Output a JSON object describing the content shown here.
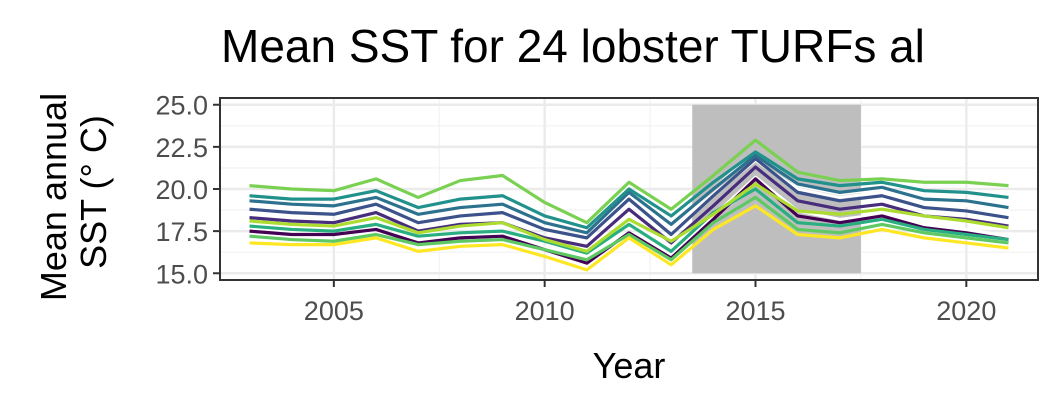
{
  "chart_data": {
    "type": "line",
    "title": "Mean SST for 24 lobster TURFs al",
    "xlabel": "Year",
    "ylabel_lines": [
      "Mean annual",
      "SST (° C)"
    ],
    "xlim": [
      2002.3,
      2021.7
    ],
    "ylim": [
      14.6,
      25.4
    ],
    "x_ticks": [
      2005,
      2010,
      2015,
      2020
    ],
    "y_ticks": [
      "15.0",
      "17.5",
      "20.0",
      "22.5",
      "25.0"
    ],
    "grid": true,
    "panel_background": "#ffffff",
    "shaded_region": {
      "x": [
        2013.5,
        2017.5
      ],
      "color": "#bebebe"
    },
    "x": [
      2003,
      2004,
      2005,
      2006,
      2007,
      2008,
      2009,
      2010,
      2011,
      2012,
      2013,
      2014,
      2015,
      2016,
      2017,
      2018,
      2019,
      2020,
      2021
    ],
    "series": [
      {
        "color": "#440154",
        "values": [
          17.5,
          17.3,
          17.3,
          17.6,
          16.8,
          17.1,
          17.2,
          16.4,
          15.6,
          17.4,
          15.9,
          18.2,
          20.6,
          18.4,
          18.0,
          18.4,
          17.7,
          17.4,
          17.0
        ]
      },
      {
        "color": "#472d7b",
        "values": [
          18.3,
          18.1,
          18.0,
          18.6,
          17.5,
          17.9,
          18.0,
          17.1,
          16.6,
          18.8,
          16.8,
          19.0,
          21.3,
          19.3,
          18.8,
          19.1,
          18.4,
          18.2,
          17.8
        ]
      },
      {
        "color": "#3b528b",
        "values": [
          18.8,
          18.6,
          18.5,
          19.1,
          18.0,
          18.4,
          18.6,
          17.6,
          17.1,
          19.4,
          17.3,
          19.6,
          21.8,
          19.8,
          19.3,
          19.6,
          18.9,
          18.7,
          18.3
        ]
      },
      {
        "color": "#2c728e",
        "values": [
          19.3,
          19.1,
          19.0,
          19.5,
          18.5,
          18.9,
          19.1,
          18.0,
          17.4,
          19.8,
          17.9,
          20.0,
          22.0,
          20.3,
          19.8,
          20.1,
          19.4,
          19.3,
          18.9
        ]
      },
      {
        "color": "#21918c",
        "values": [
          19.6,
          19.4,
          19.4,
          19.9,
          18.9,
          19.4,
          19.6,
          18.4,
          17.7,
          20.0,
          18.4,
          20.4,
          22.2,
          20.6,
          20.2,
          20.4,
          19.9,
          19.8,
          19.5
        ]
      },
      {
        "color": "#28ae80",
        "values": [
          17.8,
          17.6,
          17.5,
          17.9,
          17.2,
          17.4,
          17.5,
          16.9,
          16.2,
          17.9,
          16.3,
          18.6,
          20.0,
          18.0,
          17.8,
          18.2,
          17.6,
          17.3,
          17.0
        ]
      },
      {
        "color": "#5ec962",
        "values": [
          17.2,
          17.0,
          16.9,
          17.3,
          16.7,
          16.9,
          17.0,
          16.4,
          15.8,
          17.3,
          15.8,
          18.0,
          19.5,
          17.6,
          17.4,
          17.9,
          17.4,
          17.1,
          16.8
        ]
      },
      {
        "color": "#addc30",
        "values": [
          18.1,
          17.9,
          17.8,
          18.3,
          17.4,
          17.8,
          18.0,
          17.0,
          16.3,
          18.2,
          16.9,
          18.5,
          20.3,
          18.7,
          18.5,
          18.8,
          18.4,
          18.1,
          17.7
        ]
      },
      {
        "color": "#fde725",
        "values": [
          16.8,
          16.7,
          16.7,
          17.1,
          16.3,
          16.6,
          16.7,
          16.0,
          15.2,
          17.1,
          15.5,
          17.6,
          19.0,
          17.3,
          17.1,
          17.6,
          17.1,
          16.8,
          16.5
        ]
      },
      {
        "color": "#7ad151",
        "values": [
          20.2,
          20.0,
          19.9,
          20.6,
          19.5,
          20.5,
          20.8,
          19.2,
          18.0,
          20.4,
          18.8,
          20.8,
          22.9,
          21.0,
          20.5,
          20.6,
          20.4,
          20.4,
          20.2
        ]
      }
    ]
  }
}
